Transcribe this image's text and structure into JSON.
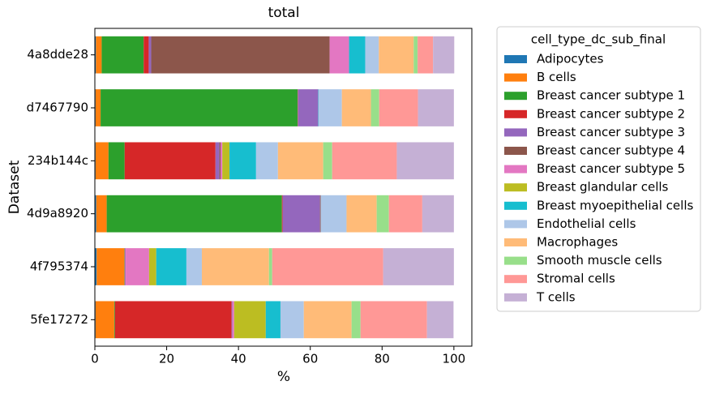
{
  "chart_data": {
    "type": "stacked-barh",
    "title": "total",
    "xlabel": "%",
    "ylabel": "Dataset",
    "legend_title": "cell_type_dc_sub_final",
    "legend": "outside right",
    "xlim": [
      0,
      105
    ],
    "xticks": [
      0,
      20,
      40,
      60,
      80,
      100
    ],
    "categories": [
      "4a8dde28",
      "d7467790",
      "234b144c",
      "4d9a8920",
      "4f795374",
      "5fe17272"
    ],
    "series": [
      {
        "name": "Adipocytes",
        "color": "#1f77b4",
        "values": [
          0.3,
          0.2,
          0.2,
          0.4,
          0.5,
          0.2
        ]
      },
      {
        "name": "B cells",
        "color": "#ff7f0e",
        "values": [
          1.6,
          1.4,
          3.6,
          2.9,
          7.7,
          5.2
        ]
      },
      {
        "name": "Breast cancer subtype 1",
        "color": "#2ca02c",
        "values": [
          11.7,
          54.9,
          4.5,
          48.8,
          0.1,
          0.2
        ]
      },
      {
        "name": "Breast cancer subtype 2",
        "color": "#d62728",
        "values": [
          1.4,
          0.1,
          25.3,
          0.2,
          0.1,
          32.5
        ]
      },
      {
        "name": "Breast cancer subtype 3",
        "color": "#9467bd",
        "values": [
          0.7,
          5.6,
          1.1,
          10.4,
          0.2,
          0.2
        ]
      },
      {
        "name": "Breast cancer subtype 4",
        "color": "#8c564b",
        "values": [
          49.7,
          0,
          0.3,
          0.2,
          0,
          0
        ]
      },
      {
        "name": "Breast cancer subtype 5",
        "color": "#e377c2",
        "values": [
          5.4,
          0,
          0.5,
          0,
          6.5,
          0.5
        ]
      },
      {
        "name": "Breast glandular cells",
        "color": "#bcbd22",
        "values": [
          0,
          0,
          2.0,
          0,
          2.0,
          8.8
        ]
      },
      {
        "name": "Breast myoepithelial cells",
        "color": "#17becf",
        "values": [
          4.5,
          0.1,
          7.4,
          0,
          8.4,
          4.1
        ]
      },
      {
        "name": "Endothelial cells",
        "color": "#aec7e8",
        "values": [
          3.8,
          6.5,
          6.1,
          7.2,
          4.3,
          6.5
        ]
      },
      {
        "name": "Macrophages",
        "color": "#ffbb78",
        "values": [
          9.7,
          8.1,
          12.6,
          8.4,
          18.7,
          13.3
        ]
      },
      {
        "name": "Smooth muscle cells",
        "color": "#98df8a",
        "values": [
          1.1,
          2.3,
          2.5,
          3.4,
          0.9,
          2.5
        ]
      },
      {
        "name": "Stromal cells",
        "color": "#ff9896",
        "values": [
          4.3,
          10.8,
          18.0,
          9.3,
          30.9,
          18.5
        ]
      },
      {
        "name": "T cells",
        "color": "#c5b0d5",
        "values": [
          5.9,
          10.0,
          15.9,
          8.8,
          19.7,
          7.4
        ]
      }
    ]
  }
}
